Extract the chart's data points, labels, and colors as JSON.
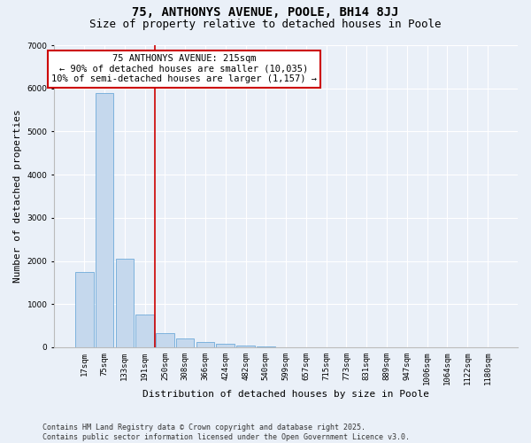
{
  "title_line1": "75, ANTHONYS AVENUE, POOLE, BH14 8JJ",
  "title_line2": "Size of property relative to detached houses in Poole",
  "xlabel": "Distribution of detached houses by size in Poole",
  "ylabel": "Number of detached properties",
  "categories": [
    "17sqm",
    "75sqm",
    "133sqm",
    "191sqm",
    "250sqm",
    "308sqm",
    "366sqm",
    "424sqm",
    "482sqm",
    "540sqm",
    "599sqm",
    "657sqm",
    "715sqm",
    "773sqm",
    "831sqm",
    "889sqm",
    "947sqm",
    "1006sqm",
    "1064sqm",
    "1122sqm",
    "1180sqm"
  ],
  "values": [
    1750,
    5900,
    2050,
    750,
    330,
    210,
    115,
    75,
    30,
    15,
    8,
    4,
    3,
    2,
    1,
    1,
    0,
    0,
    0,
    0,
    0
  ],
  "bar_color": "#c5d8ed",
  "bar_edgecolor": "#5a9fd4",
  "redline_x": 3.5,
  "annotation_title": "75 ANTHONYS AVENUE: 215sqm",
  "annotation_line1": "← 90% of detached houses are smaller (10,035)",
  "annotation_line2": "10% of semi-detached houses are larger (1,157) →",
  "annotation_box_color": "#ffffff",
  "annotation_box_edgecolor": "#cc0000",
  "redline_color": "#cc0000",
  "background_color": "#eaf0f8",
  "plot_background": "#eaf0f8",
  "ylim": [
    0,
    7000
  ],
  "yticks": [
    0,
    1000,
    2000,
    3000,
    4000,
    5000,
    6000,
    7000
  ],
  "footer_line1": "Contains HM Land Registry data © Crown copyright and database right 2025.",
  "footer_line2": "Contains public sector information licensed under the Open Government Licence v3.0.",
  "title_fontsize": 10,
  "subtitle_fontsize": 9,
  "axis_label_fontsize": 8,
  "tick_fontsize": 6.5,
  "annotation_fontsize": 7.5,
  "footer_fontsize": 6
}
